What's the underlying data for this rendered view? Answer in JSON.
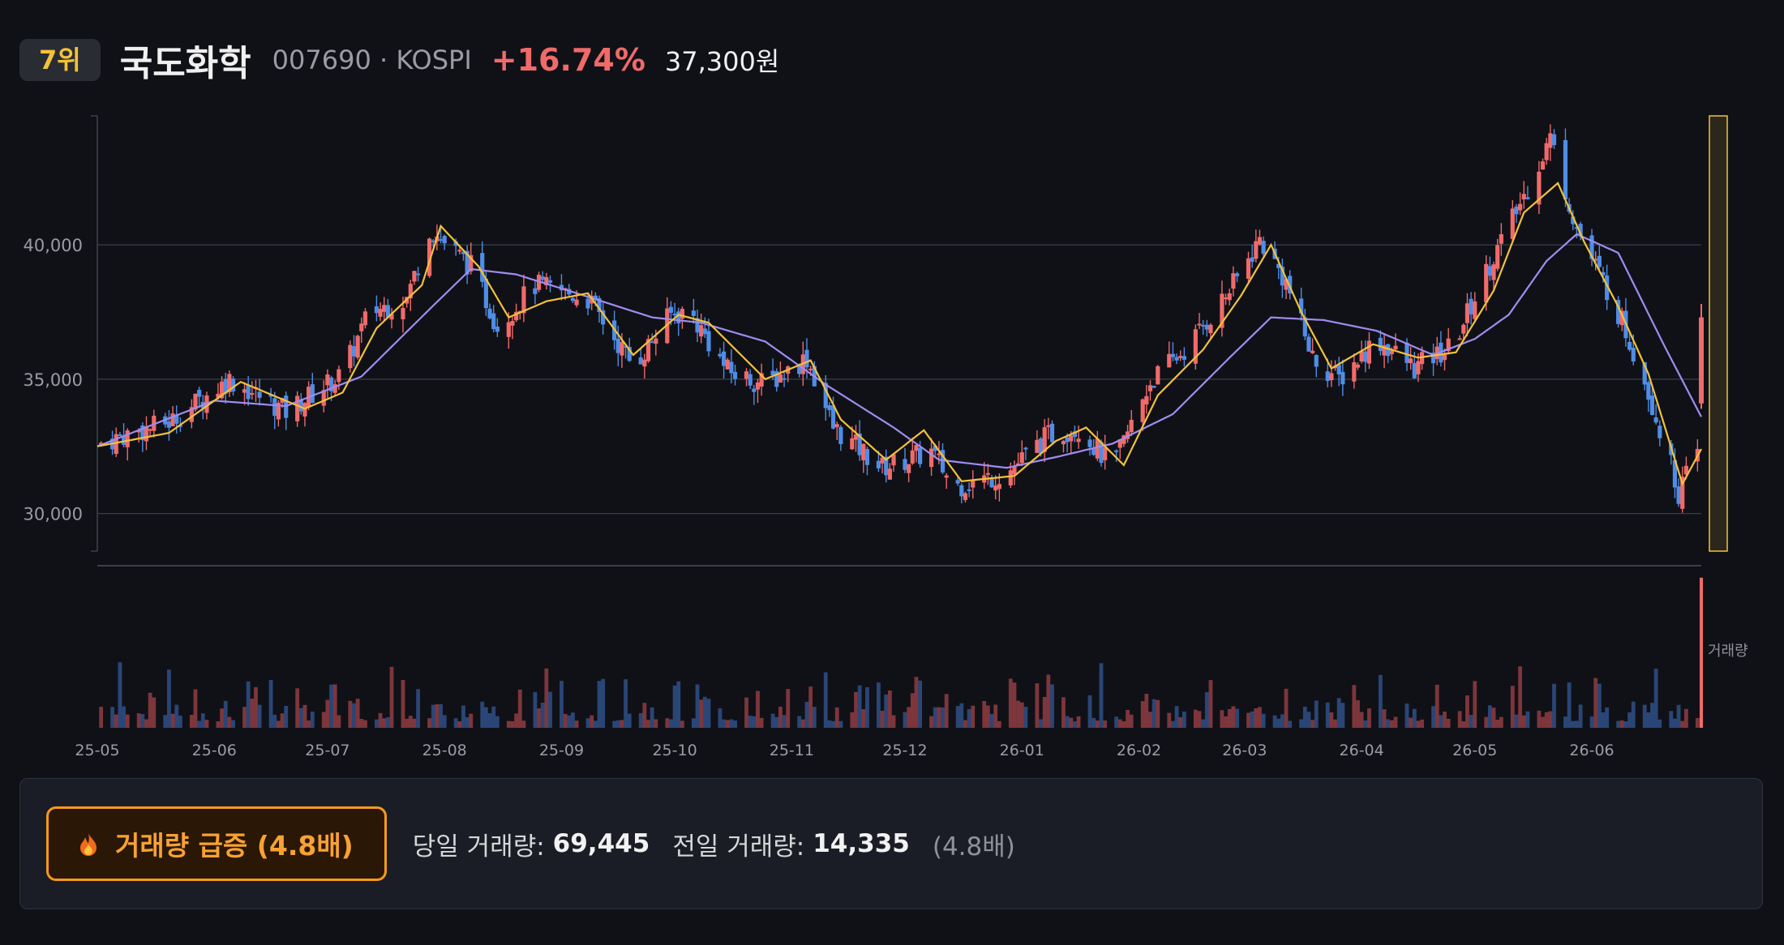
{
  "header": {
    "rank": "7위",
    "name": "국도화학",
    "code": "007690 · KOSPI",
    "change": "+16.74%",
    "price": "37,300원"
  },
  "colors": {
    "up": "#f06a6a",
    "down": "#4f8de6",
    "ma_short": "#f2c23a",
    "ma_long": "#a08cf0",
    "highlight": "#f2c23a"
  },
  "chart_data": {
    "type": "candlestick",
    "start": "2025-05-01",
    "ylim": [
      28600,
      44800
    ],
    "y_ticks": [
      "30,000",
      "35,000",
      "40,000"
    ],
    "y_tick_values": [
      30000,
      35000,
      40000
    ],
    "x_ticks": [
      "25-05",
      "25-06",
      "25-07",
      "25-08",
      "25-09",
      "25-10",
      "25-11",
      "25-12",
      "26-01",
      "26-02",
      "26-03",
      "26-04",
      "26-05",
      "26-06"
    ],
    "x_tick_dates": [
      "2025-05-01",
      "2025-06-01",
      "2025-07-01",
      "2025-08-01",
      "2025-09-01",
      "2025-10-01",
      "2025-11-01",
      "2025-12-01",
      "2026-01-01",
      "2026-02-01",
      "2026-03-01",
      "2026-04-01",
      "2026-05-01",
      "2026-06-01"
    ],
    "close_path": [
      [
        "2025-05-01",
        32600
      ],
      [
        "2025-05-20",
        33400
      ],
      [
        "2025-06-05",
        35000
      ],
      [
        "2025-06-20",
        33800
      ],
      [
        "2025-07-05",
        35200
      ],
      [
        "2025-07-12",
        37500
      ],
      [
        "2025-07-22",
        38000
      ],
      [
        "2025-07-28",
        40600
      ],
      [
        "2025-08-08",
        39200
      ],
      [
        "2025-08-15",
        37000
      ],
      [
        "2025-08-25",
        38500
      ],
      [
        "2025-09-08",
        38000
      ],
      [
        "2025-09-20",
        35500
      ],
      [
        "2025-09-30",
        37400
      ],
      [
        "2025-10-05",
        37500
      ],
      [
        "2025-10-15",
        35300
      ],
      [
        "2025-10-25",
        34800
      ],
      [
        "2025-11-05",
        35800
      ],
      [
        "2025-11-12",
        33200
      ],
      [
        "2025-11-25",
        31700
      ],
      [
        "2025-12-08",
        32300
      ],
      [
        "2025-12-14",
        31000
      ],
      [
        "2025-12-28",
        31500
      ],
      [
        "2026-01-08",
        32900
      ],
      [
        "2026-01-16",
        33200
      ],
      [
        "2026-01-25",
        31700
      ],
      [
        "2026-02-04",
        34900
      ],
      [
        "2026-02-14",
        36200
      ],
      [
        "2026-02-26",
        38500
      ],
      [
        "2026-03-05",
        40200
      ],
      [
        "2026-03-12",
        38600
      ],
      [
        "2026-03-19",
        35800
      ],
      [
        "2026-03-26",
        35000
      ],
      [
        "2026-04-05",
        36500
      ],
      [
        "2026-04-15",
        35400
      ],
      [
        "2026-04-25",
        36200
      ],
      [
        "2026-05-05",
        39300
      ],
      [
        "2026-05-14",
        41800
      ],
      [
        "2026-05-21",
        44000
      ],
      [
        "2026-05-28",
        40600
      ],
      [
        "2026-06-08",
        37500
      ],
      [
        "2026-06-15",
        35000
      ],
      [
        "2026-06-24",
        30800
      ],
      [
        "2026-06-30",
        32400
      ]
    ],
    "ma_short_path": [
      [
        "2025-05-01",
        32500
      ],
      [
        "2025-05-20",
        33000
      ],
      [
        "2025-06-08",
        34900
      ],
      [
        "2025-06-25",
        33900
      ],
      [
        "2025-07-05",
        34500
      ],
      [
        "2025-07-14",
        36900
      ],
      [
        "2025-07-26",
        38500
      ],
      [
        "2025-07-31",
        40700
      ],
      [
        "2025-08-10",
        39200
      ],
      [
        "2025-08-18",
        37300
      ],
      [
        "2025-08-28",
        37900
      ],
      [
        "2025-09-08",
        38200
      ],
      [
        "2025-09-20",
        35900
      ],
      [
        "2025-10-02",
        37400
      ],
      [
        "2025-10-10",
        37100
      ],
      [
        "2025-10-25",
        35000
      ],
      [
        "2025-11-06",
        35700
      ],
      [
        "2025-11-14",
        33500
      ],
      [
        "2025-11-26",
        32000
      ],
      [
        "2025-12-06",
        33100
      ],
      [
        "2025-12-16",
        31200
      ],
      [
        "2025-12-30",
        31400
      ],
      [
        "2026-01-10",
        32700
      ],
      [
        "2026-01-18",
        33200
      ],
      [
        "2026-01-28",
        31800
      ],
      [
        "2026-02-06",
        34400
      ],
      [
        "2026-02-18",
        36100
      ],
      [
        "2026-02-28",
        38100
      ],
      [
        "2026-03-08",
        40000
      ],
      [
        "2026-03-16",
        37500
      ],
      [
        "2026-03-24",
        35400
      ],
      [
        "2026-04-04",
        36300
      ],
      [
        "2026-04-16",
        35800
      ],
      [
        "2026-04-26",
        36000
      ],
      [
        "2026-05-06",
        38300
      ],
      [
        "2026-05-14",
        41200
      ],
      [
        "2026-05-23",
        42300
      ],
      [
        "2026-05-30",
        40100
      ],
      [
        "2026-06-08",
        37700
      ],
      [
        "2026-06-16",
        35200
      ],
      [
        "2026-06-25",
        31100
      ],
      [
        "2026-06-30",
        32400
      ]
    ],
    "ma_long_path": [
      [
        "2025-05-01",
        32500
      ],
      [
        "2025-06-01",
        34200
      ],
      [
        "2025-06-20",
        34000
      ],
      [
        "2025-07-10",
        35100
      ],
      [
        "2025-07-28",
        37600
      ],
      [
        "2025-08-08",
        39100
      ],
      [
        "2025-08-20",
        38900
      ],
      [
        "2025-09-05",
        38200
      ],
      [
        "2025-09-25",
        37300
      ],
      [
        "2025-10-08",
        37100
      ],
      [
        "2025-10-25",
        36400
      ],
      [
        "2025-11-10",
        34800
      ],
      [
        "2025-11-28",
        33200
      ],
      [
        "2025-12-10",
        32000
      ],
      [
        "2025-12-28",
        31700
      ],
      [
        "2026-01-10",
        32100
      ],
      [
        "2026-01-25",
        32600
      ],
      [
        "2026-02-10",
        33700
      ],
      [
        "2026-02-25",
        35800
      ],
      [
        "2026-03-08",
        37300
      ],
      [
        "2026-03-22",
        37200
      ],
      [
        "2026-04-05",
        36800
      ],
      [
        "2026-04-20",
        35900
      ],
      [
        "2026-05-01",
        36500
      ],
      [
        "2026-05-10",
        37400
      ],
      [
        "2026-05-20",
        39400
      ],
      [
        "2026-05-28",
        40400
      ],
      [
        "2026-06-08",
        39700
      ],
      [
        "2026-06-20",
        36300
      ],
      [
        "2026-06-30",
        33600
      ]
    ],
    "last": {
      "open": 34100,
      "high": 37800,
      "low": 33900,
      "close": 37300
    },
    "highlight_last": true,
    "volume": {
      "label": "거래량",
      "last": 69445,
      "previous": 14335,
      "ymax": 75000
    }
  },
  "panel": {
    "surge_label": "거래량 급증 (4.8배)",
    "today_label": "당일 거래량:",
    "today_value": "69,445",
    "prev_label": "전일 거래량:",
    "prev_value": "14,335",
    "ratio": "(4.8배)"
  }
}
